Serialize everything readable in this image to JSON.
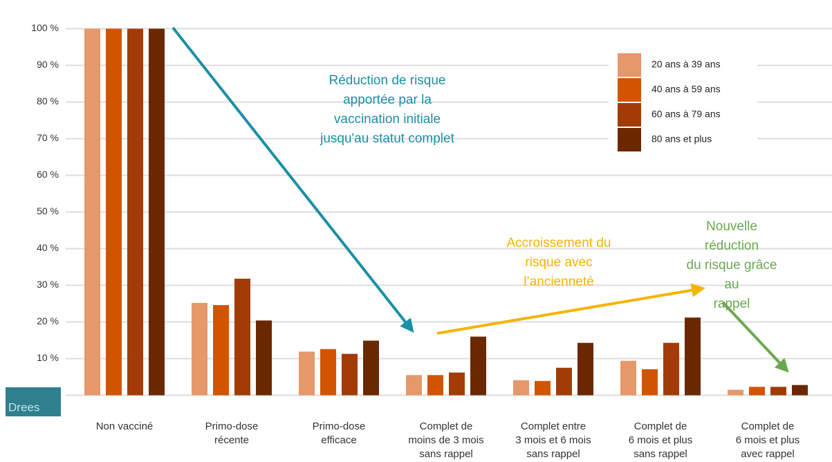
{
  "chart_data": {
    "type": "bar",
    "categories": [
      "Non vacciné",
      "Primo-dose\nrécente",
      "Primo-dose\nefficace",
      "Complet de\nmoins de 3 mois\nsans rappel",
      "Complet entre\n3 mois et 6 mois\nsans rappel",
      "Complet de\n6 mois et plus\nsans rappel",
      "Complet de\n6 mois et plus\navec rappel"
    ],
    "series": [
      {
        "name": "20 ans à 39 ans",
        "color": "#e5986a",
        "values": [
          100,
          25.2,
          11.9,
          5.5,
          4.1,
          9.4,
          1.5
        ]
      },
      {
        "name": "40 ans à 59 ans",
        "color": "#d35400",
        "values": [
          100,
          24.6,
          12.6,
          5.5,
          3.9,
          7.1,
          2.3
        ]
      },
      {
        "name": "60 ans à 79 ans",
        "color": "#a23b06",
        "values": [
          100,
          31.8,
          11.3,
          6.2,
          7.5,
          14.3,
          2.3
        ]
      },
      {
        "name": "80 ans et plus",
        "color": "#6b2800",
        "values": [
          100,
          20.4,
          14.9,
          16.0,
          14.3,
          21.2,
          2.8
        ]
      }
    ],
    "ylim": [
      -5,
      105
    ],
    "yticks": [
      {
        "value": 10,
        "label": "10 %"
      },
      {
        "value": 20,
        "label": "20 %"
      },
      {
        "value": 30,
        "label": "30 %"
      },
      {
        "value": 40,
        "label": "40 %"
      },
      {
        "value": 50,
        "label": "50 %"
      },
      {
        "value": 60,
        "label": "60 %"
      },
      {
        "value": 70,
        "label": "70 %"
      },
      {
        "value": 80,
        "label": "80 %"
      },
      {
        "value": 90,
        "label": "90 %"
      },
      {
        "value": 100,
        "label": "100 %"
      }
    ],
    "grid": true,
    "legend": "top-right",
    "annotations": [
      {
        "text": "Réduction de risque\napportée par la\nvaccination initiale\njusqu'au statut complet",
        "color": "#1a8fa6"
      },
      {
        "text": "Accroissement du\nrisque avec\nl’ancienneté",
        "color": "#f4b400"
      },
      {
        "text": "Nouvelle réduction\ndu risque grâce au\nrappel",
        "color": "#6aa84f"
      }
    ],
    "logo": "Drees"
  }
}
